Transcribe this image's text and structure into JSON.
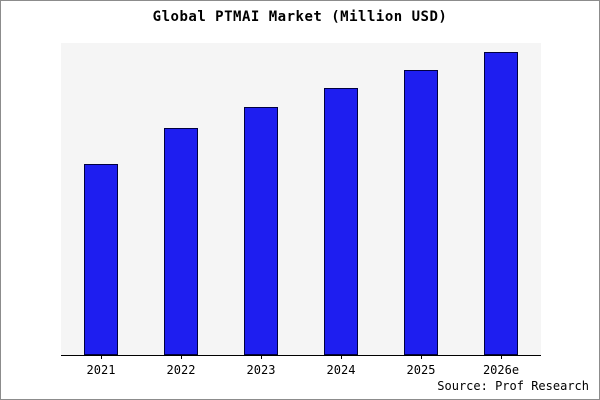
{
  "chart_data": {
    "type": "bar",
    "title": "Global PTMAI Market (Million USD)",
    "categories": [
      "2021",
      "2022",
      "2023",
      "2024",
      "2025",
      "2026e"
    ],
    "values": [
      63,
      75,
      82,
      88,
      94,
      100
    ],
    "xlabel": "",
    "ylabel": "",
    "ylim": [
      0,
      103
    ],
    "grid": false,
    "legend": false,
    "bar_fill": "#1e1ef0",
    "bar_border": "#000040",
    "plot_background": "#f5f5f5"
  },
  "source": "Source: Prof Research"
}
